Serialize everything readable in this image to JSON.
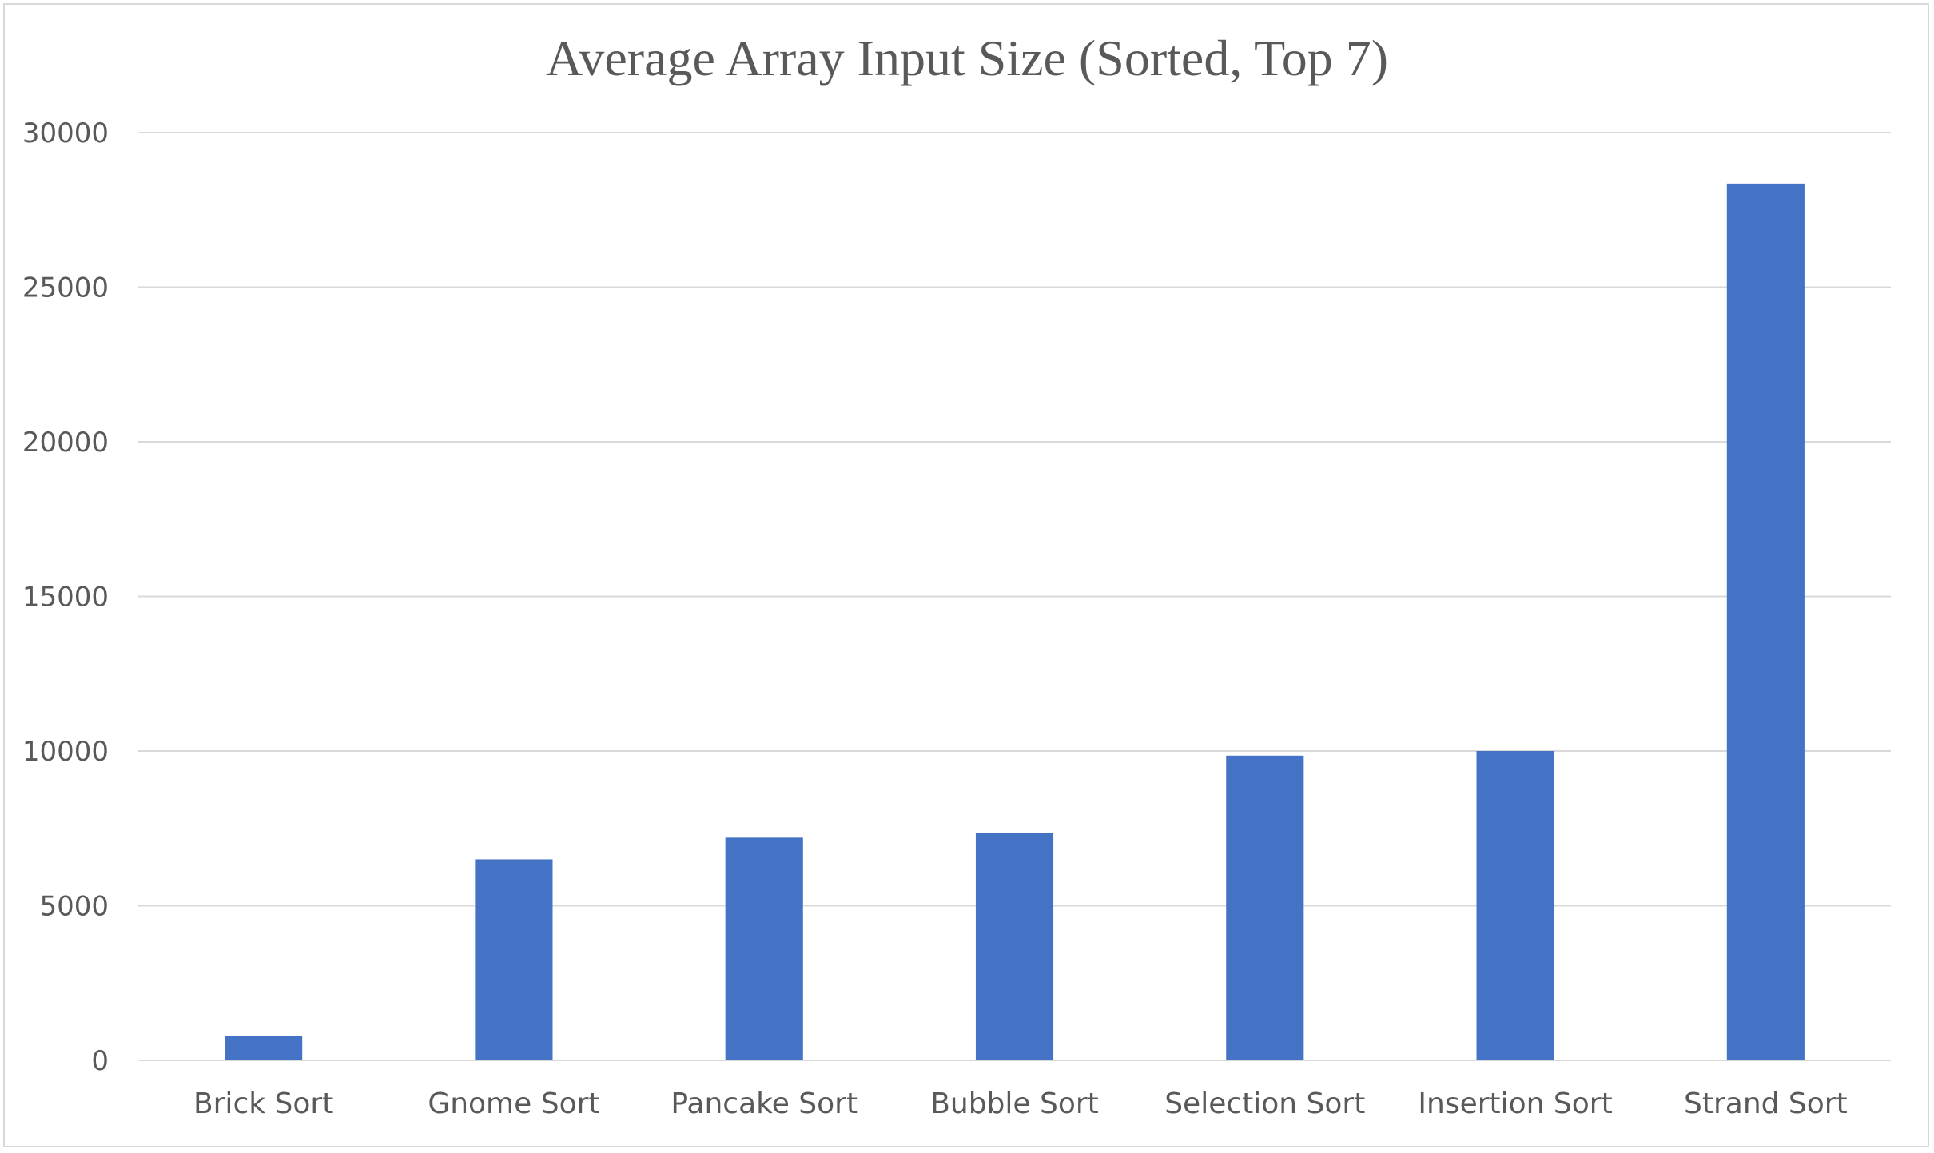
{
  "chart_data": {
    "type": "bar",
    "title": "Average Array Input Size (Sorted, Top 7)",
    "xlabel": "",
    "ylabel": "",
    "categories": [
      "Brick Sort",
      "Gnome Sort",
      "Pancake Sort",
      "Bubble Sort",
      "Selection Sort",
      "Insertion Sort",
      "Strand Sort"
    ],
    "values": [
      800,
      6500,
      7200,
      7350,
      9850,
      10000,
      28350
    ],
    "ylim": [
      0,
      30000
    ],
    "yticks": [
      "0",
      "5000",
      "10000",
      "15000",
      "20000",
      "25000",
      "30000"
    ],
    "grid": true,
    "legend": "none",
    "bar_color": "#4472c4",
    "grid_color": "#d9d9d9"
  }
}
